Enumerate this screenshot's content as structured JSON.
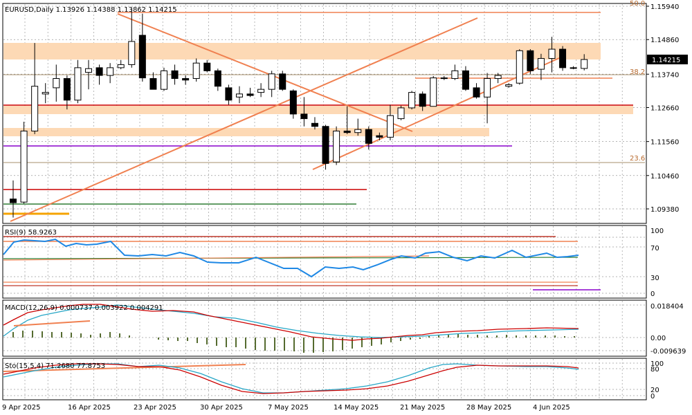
{
  "main_header": "EURUSD,Daily  1.13926 1.14388 1.13862 1.14215",
  "current_price": "1.14215",
  "price_ticks": [
    "1.15940",
    "1.14860",
    "1.13740",
    "1.12660",
    "1.11560",
    "1.10460",
    "1.09380"
  ],
  "fib_labels": {
    "top": "50.0",
    "mid": "38.2",
    "low": "23.6"
  },
  "x_ticks": [
    "9 Apr 2025",
    "16 Apr 2025",
    "23 Apr 2025",
    "30 Apr 2025",
    "7 May 2025",
    "14 May 2025",
    "21 May 2025",
    "28 May 2025",
    "4 Jun 2025"
  ],
  "rsi": {
    "header": "RSI(9) 58.9263",
    "ticks": [
      "100",
      "70",
      "30",
      "0"
    ]
  },
  "macd": {
    "header": "MACD(12,26,9) 0.000737 0.003922 0.004291",
    "ticks": [
      "0.018404",
      "0.00",
      "-0.009639"
    ]
  },
  "sto": {
    "header": "Sto(15,5,4) 71.2680 77.8753",
    "ticks": [
      "100",
      "80",
      "20",
      "0"
    ]
  },
  "colors": {
    "bull": "#ffffff",
    "bear": "#000000",
    "zone": "#fdd9b5",
    "trend": "#f08050",
    "red": "#cc0000",
    "purple": "#8800cc",
    "green": "#2e7d32",
    "gold": "#f5a300",
    "rsi_line": "#1e88e5",
    "macd_main": "#cc0000",
    "macd_signal": "#26a6c6",
    "macd_hist": "#556b2f",
    "sto_main": "#cc0000",
    "sto_signal": "#26a6c6"
  },
  "chart_data": {
    "type": "candlestick",
    "symbol": "EURUSD",
    "timeframe": "Daily",
    "ylim": [
      1.0918,
      1.1614
    ],
    "candles": [
      {
        "o": 1.097,
        "h": 1.103,
        "l": 1.091,
        "c": 1.0958
      },
      {
        "o": 1.096,
        "h": 1.122,
        "l": 1.0955,
        "c": 1.119
      },
      {
        "o": 1.119,
        "h": 1.1475,
        "l": 1.118,
        "c": 1.1335
      },
      {
        "o": 1.131,
        "h": 1.1345,
        "l": 1.128,
        "c": 1.1315
      },
      {
        "o": 1.133,
        "h": 1.1405,
        "l": 1.1285,
        "c": 1.136
      },
      {
        "o": 1.136,
        "h": 1.137,
        "l": 1.126,
        "c": 1.129
      },
      {
        "o": 1.129,
        "h": 1.142,
        "l": 1.128,
        "c": 1.1395
      },
      {
        "o": 1.138,
        "h": 1.142,
        "l": 1.1325,
        "c": 1.1392
      },
      {
        "o": 1.1395,
        "h": 1.1405,
        "l": 1.134,
        "c": 1.137
      },
      {
        "o": 1.137,
        "h": 1.141,
        "l": 1.1345,
        "c": 1.1395
      },
      {
        "o": 1.1395,
        "h": 1.142,
        "l": 1.139,
        "c": 1.1405
      },
      {
        "o": 1.1405,
        "h": 1.1585,
        "l": 1.1395,
        "c": 1.148
      },
      {
        "o": 1.15,
        "h": 1.157,
        "l": 1.135,
        "c": 1.1362
      },
      {
        "o": 1.136,
        "h": 1.138,
        "l": 1.1325,
        "c": 1.1325
      },
      {
        "o": 1.1325,
        "h": 1.1395,
        "l": 1.132,
        "c": 1.1385
      },
      {
        "o": 1.1385,
        "h": 1.1405,
        "l": 1.134,
        "c": 1.136
      },
      {
        "o": 1.136,
        "h": 1.137,
        "l": 1.134,
        "c": 1.1355
      },
      {
        "o": 1.136,
        "h": 1.1425,
        "l": 1.135,
        "c": 1.141
      },
      {
        "o": 1.141,
        "h": 1.142,
        "l": 1.138,
        "c": 1.1385
      },
      {
        "o": 1.1385,
        "h": 1.1392,
        "l": 1.132,
        "c": 1.1335
      },
      {
        "o": 1.133,
        "h": 1.134,
        "l": 1.1275,
        "c": 1.129
      },
      {
        "o": 1.13,
        "h": 1.1335,
        "l": 1.128,
        "c": 1.131
      },
      {
        "o": 1.131,
        "h": 1.133,
        "l": 1.13,
        "c": 1.1305
      },
      {
        "o": 1.1315,
        "h": 1.1345,
        "l": 1.13,
        "c": 1.1325
      },
      {
        "o": 1.1325,
        "h": 1.1385,
        "l": 1.13,
        "c": 1.1375
      },
      {
        "o": 1.1375,
        "h": 1.1385,
        "l": 1.132,
        "c": 1.1325
      },
      {
        "o": 1.132,
        "h": 1.1325,
        "l": 1.123,
        "c": 1.1245
      },
      {
        "o": 1.1245,
        "h": 1.13,
        "l": 1.1205,
        "c": 1.123
      },
      {
        "o": 1.1215,
        "h": 1.1235,
        "l": 1.1195,
        "c": 1.1205
      },
      {
        "o": 1.1205,
        "h": 1.121,
        "l": 1.1065,
        "c": 1.1085
      },
      {
        "o": 1.109,
        "h": 1.1205,
        "l": 1.108,
        "c": 1.119
      },
      {
        "o": 1.119,
        "h": 1.127,
        "l": 1.118,
        "c": 1.1185
      },
      {
        "o": 1.1185,
        "h": 1.123,
        "l": 1.1175,
        "c": 1.1195
      },
      {
        "o": 1.1195,
        "h": 1.1205,
        "l": 1.113,
        "c": 1.115
      },
      {
        "o": 1.1175,
        "h": 1.1185,
        "l": 1.116,
        "c": 1.117
      },
      {
        "o": 1.117,
        "h": 1.1275,
        "l": 1.116,
        "c": 1.124
      },
      {
        "o": 1.123,
        "h": 1.1272,
        "l": 1.1225,
        "c": 1.1265
      },
      {
        "o": 1.1265,
        "h": 1.132,
        "l": 1.126,
        "c": 1.1315
      },
      {
        "o": 1.131,
        "h": 1.1318,
        "l": 1.1255,
        "c": 1.127
      },
      {
        "o": 1.127,
        "h": 1.1368,
        "l": 1.127,
        "c": 1.1362
      },
      {
        "o": 1.1362,
        "h": 1.1368,
        "l": 1.1355,
        "c": 1.136
      },
      {
        "o": 1.136,
        "h": 1.1405,
        "l": 1.1355,
        "c": 1.1385
      },
      {
        "o": 1.1385,
        "h": 1.14,
        "l": 1.132,
        "c": 1.1325
      },
      {
        "o": 1.133,
        "h": 1.1345,
        "l": 1.1295,
        "c": 1.13
      },
      {
        "o": 1.13,
        "h": 1.1378,
        "l": 1.1215,
        "c": 1.136
      },
      {
        "o": 1.136,
        "h": 1.1378,
        "l": 1.1345,
        "c": 1.137
      },
      {
        "o": 1.1335,
        "h": 1.1345,
        "l": 1.133,
        "c": 1.134
      },
      {
        "o": 1.1345,
        "h": 1.1455,
        "l": 1.134,
        "c": 1.145
      },
      {
        "o": 1.145,
        "h": 1.1455,
        "l": 1.1375,
        "c": 1.1385
      },
      {
        "o": 1.139,
        "h": 1.144,
        "l": 1.1355,
        "c": 1.1425
      },
      {
        "o": 1.1425,
        "h": 1.1495,
        "l": 1.138,
        "c": 1.1455
      },
      {
        "o": 1.1455,
        "h": 1.1465,
        "l": 1.1385,
        "c": 1.1395
      },
      {
        "o": 1.1393,
        "h": 1.14,
        "l": 1.139,
        "c": 1.1395
      },
      {
        "o": 1.13926,
        "h": 1.14388,
        "l": 1.13862,
        "c": 1.14215
      }
    ]
  }
}
